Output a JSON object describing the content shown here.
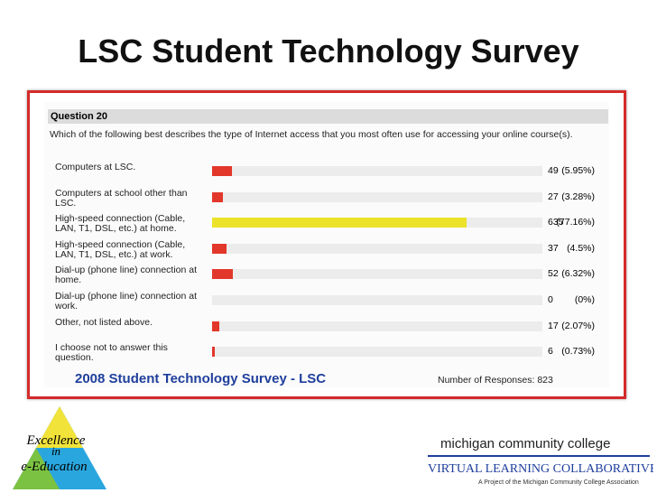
{
  "slide_title": "LSC Student Technology Survey",
  "chart_data": {
    "type": "hbar",
    "heading": "Question 20",
    "question": "Which of the following best describes the type of Internet access that you most often use for accessing your online course(s).",
    "categories": [
      "Computers at LSC.",
      "Computers at school other than LSC.",
      "High-speed connection (Cable, LAN, T1, DSL, etc.) at home.",
      "High-speed connection (Cable, LAN, T1, DSL, etc.) at work.",
      "Dial-up (phone line) connection at home.",
      "Dial-up (phone line) connection at work.",
      "Other, not listed above.",
      "I choose not to answer this question."
    ],
    "values": [
      49,
      27,
      635,
      37,
      52,
      0,
      17,
      6
    ],
    "percentages": [
      5.95,
      3.28,
      77.16,
      4.5,
      6.32,
      0,
      2.07,
      0.73
    ],
    "percentage_labels": [
      "(5.95%)",
      "(3.28%)",
      "(77.16%)",
      "(4.5%)",
      "(6.32%)",
      "(0%)",
      "(2.07%)",
      "(0.73%)"
    ],
    "colors": [
      "#e2372b",
      "#e2372b",
      "#ece22a",
      "#e2372b",
      "#e2372b",
      "#e2372b",
      "#e2372b",
      "#e2372b"
    ],
    "footer_title": "2008 Student Technology Survey - LSC",
    "responses_label": "Number of Responses:",
    "responses": 823
  },
  "logo_left": {
    "line1": "Excellence",
    "line2": "in",
    "line3": "e-Education"
  },
  "logo_right": {
    "line1": "michigan community college",
    "line2": "VIRTUAL LEARNING COLLABORATIVE",
    "line3": "A Project of the Michigan Community College Association"
  }
}
